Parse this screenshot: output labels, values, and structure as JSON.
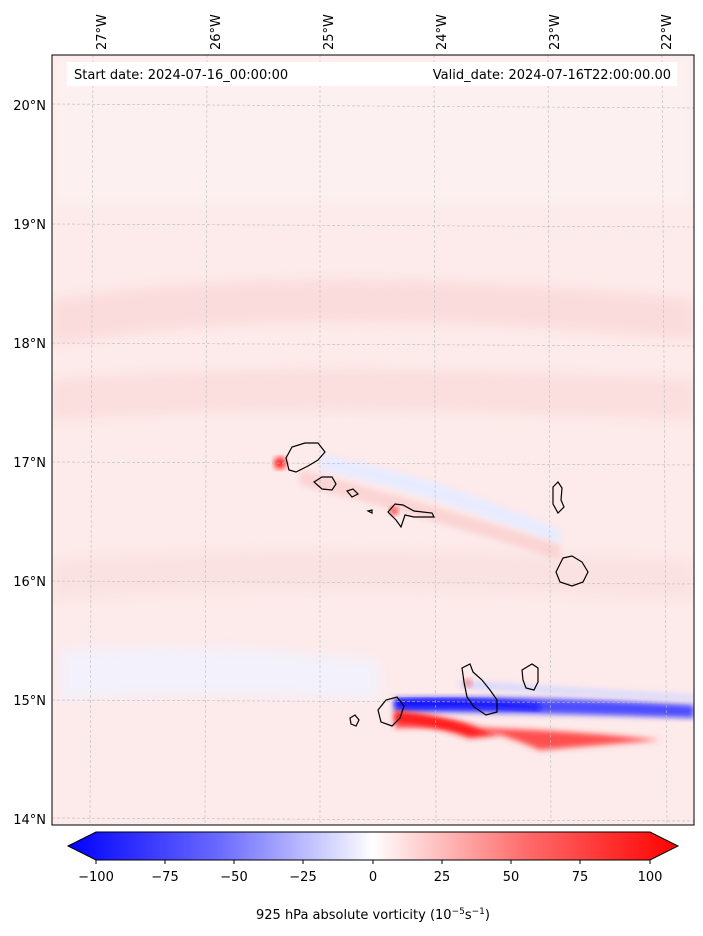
{
  "map": {
    "start_date_text": "Start date: 2024-07-16_00:00:00",
    "valid_date_text": "Valid_date: 2024-07-16T22:00:00.00",
    "lon_ticks": [
      "27°W",
      "26°W",
      "25°W",
      "24°W",
      "23°W",
      "22°W"
    ],
    "lat_ticks": [
      "20°N",
      "19°N",
      "18°N",
      "17°N",
      "16°N",
      "15°N",
      "14°N"
    ],
    "field_colors": {
      "positive_weak": "#fde4e4",
      "positive_strong": "#ff0000",
      "negative_weak": "#eef0ff",
      "negative_strong": "#0000ff",
      "coastline": "#000000"
    }
  },
  "colorbar": {
    "tick_labels": [
      "−100",
      "−75",
      "−50",
      "−25",
      "0",
      "25",
      "50",
      "75",
      "100"
    ],
    "label": "925 hPa absolute vorticity (10",
    "label_exp1": "−5",
    "label_mid": "s",
    "label_exp2": "−1",
    "label_end": ")"
  }
}
